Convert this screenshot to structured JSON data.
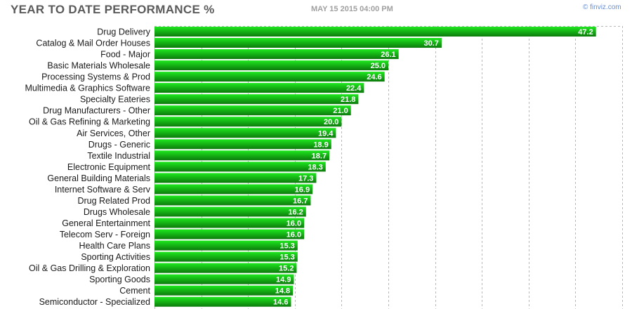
{
  "header": {
    "title": "YEAR TO DATE PERFORMANCE %",
    "date": "MAY 15 2015 04:00 PM",
    "brand": "© finviz.com"
  },
  "colors": {
    "bar_top": "#1ee81e",
    "bar_bottom": "#0c7a0c",
    "grid": "#b8b8b8",
    "text": "#1a1a1a"
  },
  "chart_data": {
    "type": "bar",
    "orientation": "horizontal",
    "title": "YEAR TO DATE PERFORMANCE %",
    "xlim": [
      0,
      50
    ],
    "grid": true,
    "categories": [
      "Drug Delivery",
      "Catalog & Mail Order Houses",
      "Food - Major",
      "Basic Materials Wholesale",
      "Processing Systems & Prod",
      "Multimedia & Graphics Software",
      "Specialty Eateries",
      "Drug Manufacturers - Other",
      "Oil & Gas Refining & Marketing",
      "Air Services, Other",
      "Drugs - Generic",
      "Textile Industrial",
      "Electronic Equipment",
      "General Building Materials",
      "Internet Software & Serv",
      "Drug Related Prod",
      "Drugs Wholesale",
      "General Entertainment",
      "Telecom Serv - Foreign",
      "Health Care Plans",
      "Sporting Activities",
      "Oil & Gas Drilling & Exploration",
      "Sporting Goods",
      "Cement",
      "Semiconductor - Specialized"
    ],
    "values": [
      47.2,
      30.7,
      26.1,
      25.0,
      24.6,
      22.4,
      21.8,
      21.0,
      20.0,
      19.4,
      18.9,
      18.7,
      18.3,
      17.3,
      16.9,
      16.7,
      16.2,
      16.0,
      16.0,
      15.3,
      15.3,
      15.2,
      14.9,
      14.8,
      14.6
    ],
    "value_labels": [
      "47.2",
      "30.7",
      "26.1",
      "25.0",
      "24.6",
      "22.4",
      "21.8",
      "21.0",
      "20.0",
      "19.4",
      "18.9",
      "18.7",
      "18.3",
      "17.3",
      "16.9",
      "16.7",
      "16.2",
      "16.0",
      "16.0",
      "15.3",
      "15.3",
      "15.2",
      "14.9",
      "14.8",
      "14.6"
    ]
  }
}
